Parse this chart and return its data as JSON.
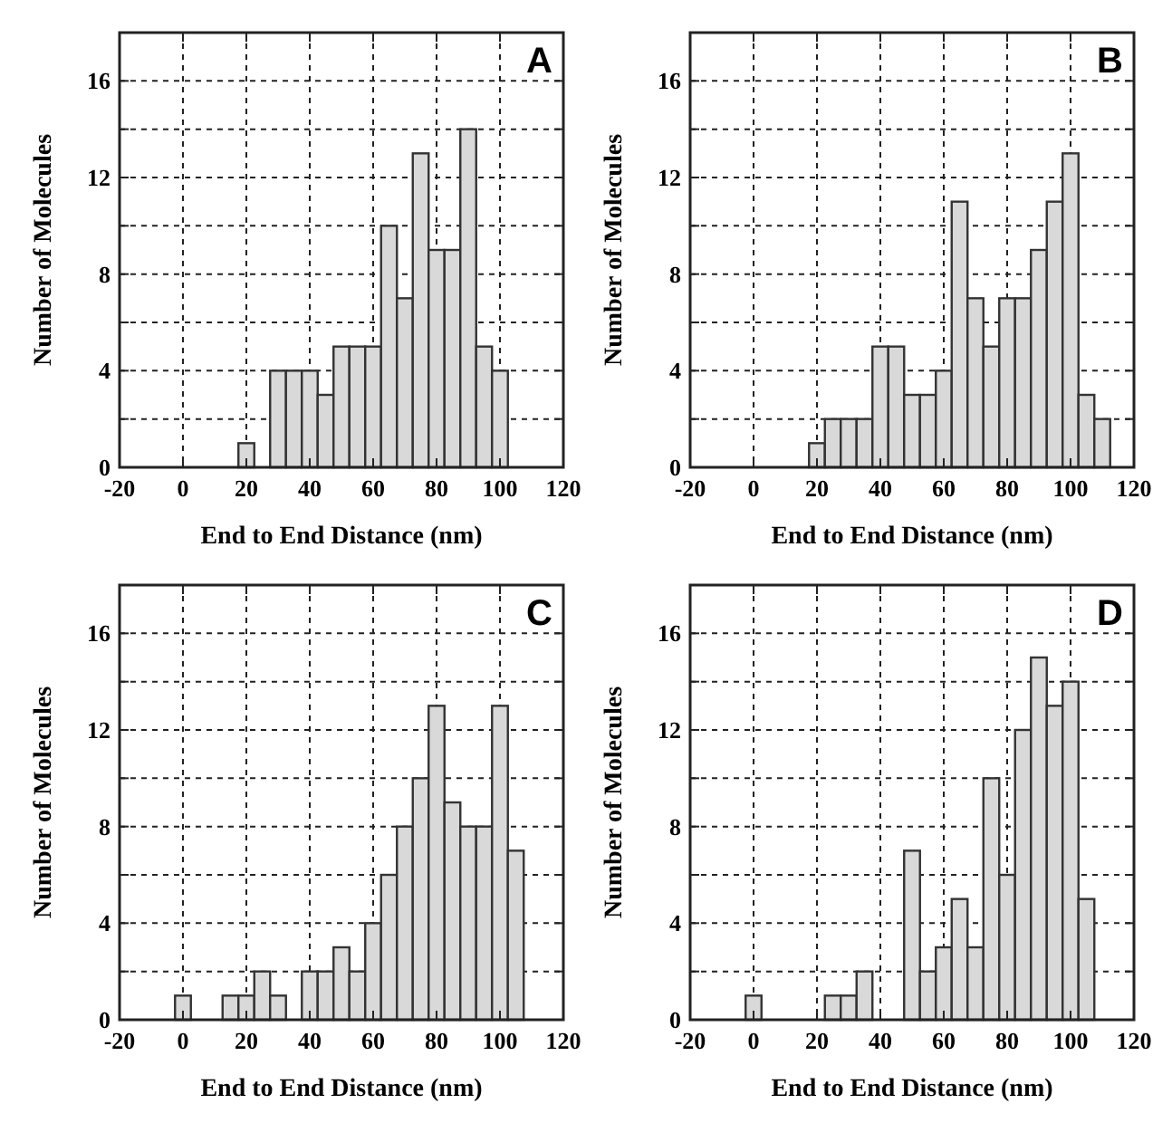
{
  "chart_data": [
    {
      "type": "histogram",
      "xlabel": "End to End Distance (nm)",
      "ylabel": "Number of Molecules",
      "annotations": [
        "A"
      ],
      "color": "#d9d9d9",
      "grid": true,
      "xlim": [
        -20,
        120
      ],
      "ylim": [
        0,
        18
      ],
      "xticks": [
        -20,
        0,
        20,
        40,
        60,
        80,
        100,
        120
      ],
      "yticks": [
        0,
        {
          "value": 2,
          "label": null
        },
        4,
        {
          "value": 6,
          "label": null
        },
        8,
        {
          "value": 10,
          "label": null
        },
        12,
        {
          "value": 14,
          "label": null
        },
        16
      ],
      "bins": [
        -2.5,
        2.5,
        7.5,
        12.5,
        17.5,
        22.5,
        27.5,
        32.5,
        37.5,
        42.5,
        47.5,
        52.5,
        57.5,
        62.5,
        67.5,
        72.5,
        77.5,
        82.5,
        87.5,
        92.5,
        97.5,
        102.5,
        107.5,
        112.5
      ],
      "values": [
        0,
        0,
        0,
        0,
        1,
        0,
        4,
        4,
        4,
        3,
        5,
        5,
        5,
        10,
        7,
        13,
        9,
        9,
        14,
        5,
        4,
        0,
        0
      ]
    },
    {
      "type": "histogram",
      "xlabel": "End to End Distance (nm)",
      "ylabel": "Number of Molecules",
      "annotations": [
        "B"
      ],
      "color": "#d9d9d9",
      "grid": true,
      "xlim": [
        -20,
        120
      ],
      "ylim": [
        0,
        18
      ],
      "xticks": [
        -20,
        0,
        20,
        40,
        60,
        80,
        100,
        120
      ],
      "yticks": [
        0,
        {
          "value": 2,
          "label": null
        },
        4,
        {
          "value": 6,
          "label": null
        },
        8,
        {
          "value": 10,
          "label": null
        },
        12,
        {
          "value": 14,
          "label": null
        },
        16
      ],
      "bins": [
        -2.5,
        2.5,
        7.5,
        12.5,
        17.5,
        22.5,
        27.5,
        32.5,
        37.5,
        42.5,
        47.5,
        52.5,
        57.5,
        62.5,
        67.5,
        72.5,
        77.5,
        82.5,
        87.5,
        92.5,
        97.5,
        102.5,
        107.5,
        112.5
      ],
      "values": [
        0,
        0,
        0,
        0,
        1,
        2,
        2,
        2,
        5,
        5,
        3,
        3,
        4,
        11,
        7,
        5,
        7,
        7,
        9,
        11,
        13,
        3,
        2
      ]
    },
    {
      "type": "histogram",
      "xlabel": "End to End Distance (nm)",
      "ylabel": "Number of Molecules",
      "annotations": [
        "C"
      ],
      "color": "#d9d9d9",
      "grid": true,
      "xlim": [
        -20,
        120
      ],
      "ylim": [
        0,
        18
      ],
      "xticks": [
        -20,
        0,
        20,
        40,
        60,
        80,
        100,
        120
      ],
      "yticks": [
        0,
        {
          "value": 2,
          "label": null
        },
        4,
        {
          "value": 6,
          "label": null
        },
        8,
        {
          "value": 10,
          "label": null
        },
        12,
        {
          "value": 14,
          "label": null
        },
        16
      ],
      "bins": [
        -2.5,
        2.5,
        7.5,
        12.5,
        17.5,
        22.5,
        27.5,
        32.5,
        37.5,
        42.5,
        47.5,
        52.5,
        57.5,
        62.5,
        67.5,
        72.5,
        77.5,
        82.5,
        87.5,
        92.5,
        97.5,
        102.5,
        107.5,
        112.5
      ],
      "values": [
        1,
        0,
        0,
        1,
        1,
        2,
        1,
        0,
        2,
        2,
        3,
        2,
        4,
        6,
        8,
        10,
        13,
        9,
        8,
        8,
        13,
        7,
        0
      ]
    },
    {
      "type": "histogram",
      "xlabel": "End to End Distance (nm)",
      "ylabel": "Number of Molecules",
      "annotations": [
        "D"
      ],
      "color": "#d9d9d9",
      "grid": true,
      "xlim": [
        -20,
        120
      ],
      "ylim": [
        0,
        18
      ],
      "xticks": [
        -20,
        0,
        20,
        40,
        60,
        80,
        100,
        120
      ],
      "yticks": [
        0,
        {
          "value": 2,
          "label": null
        },
        4,
        {
          "value": 6,
          "label": null
        },
        8,
        {
          "value": 10,
          "label": null
        },
        12,
        {
          "value": 14,
          "label": null
        },
        16
      ],
      "bins": [
        -2.5,
        2.5,
        7.5,
        12.5,
        17.5,
        22.5,
        27.5,
        32.5,
        37.5,
        42.5,
        47.5,
        52.5,
        57.5,
        62.5,
        67.5,
        72.5,
        77.5,
        82.5,
        87.5,
        92.5,
        97.5,
        102.5,
        107.5,
        112.5
      ],
      "values": [
        1,
        0,
        0,
        0,
        0,
        1,
        1,
        2,
        0,
        0,
        7,
        2,
        3,
        5,
        3,
        10,
        6,
        12,
        15,
        13,
        14,
        5,
        0
      ]
    }
  ]
}
